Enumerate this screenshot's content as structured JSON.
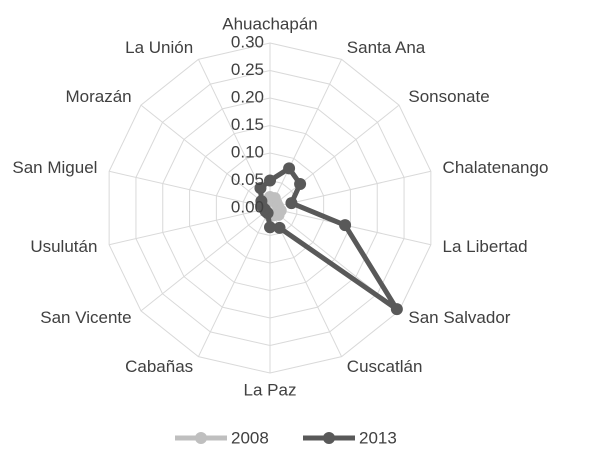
{
  "chart_data": {
    "type": "radar",
    "categories": [
      "Ahuachapán",
      "Santa Ana",
      "Sonsonate",
      "Chalatenango",
      "La Libertad",
      "San Salvador",
      "Cuscatlán",
      "La Paz",
      "Cabañas",
      "San Vicente",
      "Usulután",
      "San Miguel",
      "Morazán",
      "La Unión"
    ],
    "series": [
      {
        "name": "2008",
        "color": "#bfbfbf",
        "values": [
          0.02,
          0.02,
          0.015,
          0.015,
          0.02,
          0.02,
          0.015,
          0.015,
          0.01,
          0.01,
          0.01,
          0.015,
          0.01,
          0.015
        ]
      },
      {
        "name": "2013",
        "color": "#595959",
        "values": [
          0.05,
          0.08,
          0.07,
          0.04,
          0.14,
          0.295,
          0.04,
          0.035,
          0.01,
          0.01,
          0.01,
          0.015,
          0.02,
          0.04
        ]
      }
    ],
    "ylim": [
      0,
      0.3
    ],
    "yticks": [
      {
        "value": 0,
        "label": "0.00"
      },
      {
        "value": 0.05,
        "label": "0.05"
      },
      {
        "value": 0.1,
        "label": "0.10"
      },
      {
        "value": 0.15,
        "label": "0.15"
      },
      {
        "value": 0.2,
        "label": "0.20"
      },
      {
        "value": 0.25,
        "label": "0.25"
      },
      {
        "value": 0.3,
        "label": "0.30"
      }
    ],
    "grid": true,
    "legend": "bottom"
  }
}
